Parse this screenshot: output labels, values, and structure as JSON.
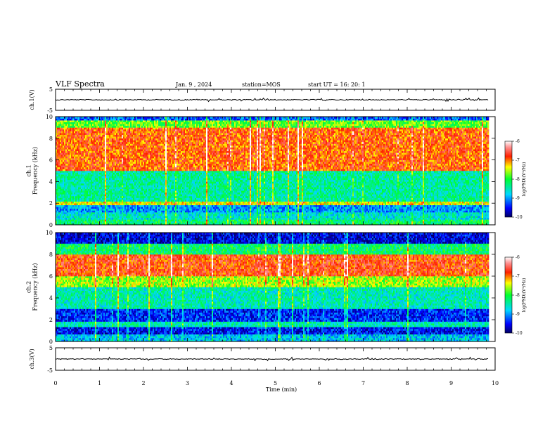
{
  "header": {
    "title": "VLF Spectra",
    "date": "Jan. 9 , 2024",
    "station": "station=MOS",
    "start": "start UT =  16: 20: 1"
  },
  "chart_data": [
    {
      "type": "line",
      "name": "ch1-waveform",
      "ylabel": "ch.1(V)",
      "ylim": [
        -5,
        5
      ],
      "yticks": [
        "5",
        "-5"
      ],
      "xlim": [
        0,
        10
      ],
      "values": {
        "baseline": 0
      }
    },
    {
      "type": "heatmap",
      "name": "ch1-spectrogram",
      "ylabel": "ch.1\nFrequency (kHz)",
      "ylim": [
        0,
        10
      ],
      "yticks": [
        "0",
        "2",
        "4",
        "6",
        "8",
        "10"
      ],
      "xlim": [
        0,
        10
      ],
      "data_extent_min": 9.85,
      "bands": [
        {
          "from": 0,
          "to": 0.5,
          "level": -8.2
        },
        {
          "from": 0.5,
          "to": 1.2,
          "level": -8.6
        },
        {
          "from": 1.2,
          "to": 1.8,
          "level": -9.0
        },
        {
          "from": 1.8,
          "to": 2.2,
          "level": -7.4
        },
        {
          "from": 2.2,
          "to": 5.0,
          "level": -8.4
        },
        {
          "from": 5.0,
          "to": 9.0,
          "level": -6.9
        },
        {
          "from": 9.0,
          "to": 9.6,
          "level": -7.8
        },
        {
          "from": 9.6,
          "to": 10,
          "level": -9.2
        }
      ],
      "colorbar": {
        "label": "log(PSD)(V²/Hz)",
        "min": -10,
        "max": -6,
        "ticks": [
          "-6",
          "-7",
          "-8",
          "-9",
          "-10"
        ]
      }
    },
    {
      "type": "heatmap",
      "name": "ch2-spectrogram",
      "ylabel": "ch.2\nFrequency (kHz)",
      "ylim": [
        0,
        10
      ],
      "yticks": [
        "0",
        "2",
        "4",
        "6",
        "8",
        "10"
      ],
      "xlim": [
        0,
        10
      ],
      "data_extent_min": 9.85,
      "bands": [
        {
          "from": 0,
          "to": 0.6,
          "level": -8.8
        },
        {
          "from": 0.6,
          "to": 1.4,
          "level": -9.5
        },
        {
          "from": 1.4,
          "to": 1.9,
          "level": -8.5
        },
        {
          "from": 1.9,
          "to": 3.0,
          "level": -9.4
        },
        {
          "from": 3.0,
          "to": 5.0,
          "level": -8.5
        },
        {
          "from": 5.0,
          "to": 6.0,
          "level": -7.6
        },
        {
          "from": 6.0,
          "to": 8.0,
          "level": -6.8
        },
        {
          "from": 8.0,
          "to": 9.0,
          "level": -8.2
        },
        {
          "from": 9.0,
          "to": 10,
          "level": -9.6
        }
      ],
      "colorbar": {
        "label": "log(PSD)(V²/Hz)",
        "min": -10,
        "max": -6,
        "ticks": [
          "-6",
          "-7",
          "-8",
          "-9",
          "-10"
        ]
      }
    },
    {
      "type": "line",
      "name": "ch3-waveform",
      "ylabel": "ch.3(V)",
      "ylim": [
        -5,
        5
      ],
      "yticks": [
        "5",
        "-5"
      ],
      "xlim": [
        0,
        10
      ],
      "xlabel": "Time (min)",
      "xticks": [
        "0",
        "1",
        "2",
        "3",
        "4",
        "5",
        "6",
        "7",
        "8",
        "9",
        "10"
      ],
      "values": {
        "baseline": 0
      }
    }
  ]
}
